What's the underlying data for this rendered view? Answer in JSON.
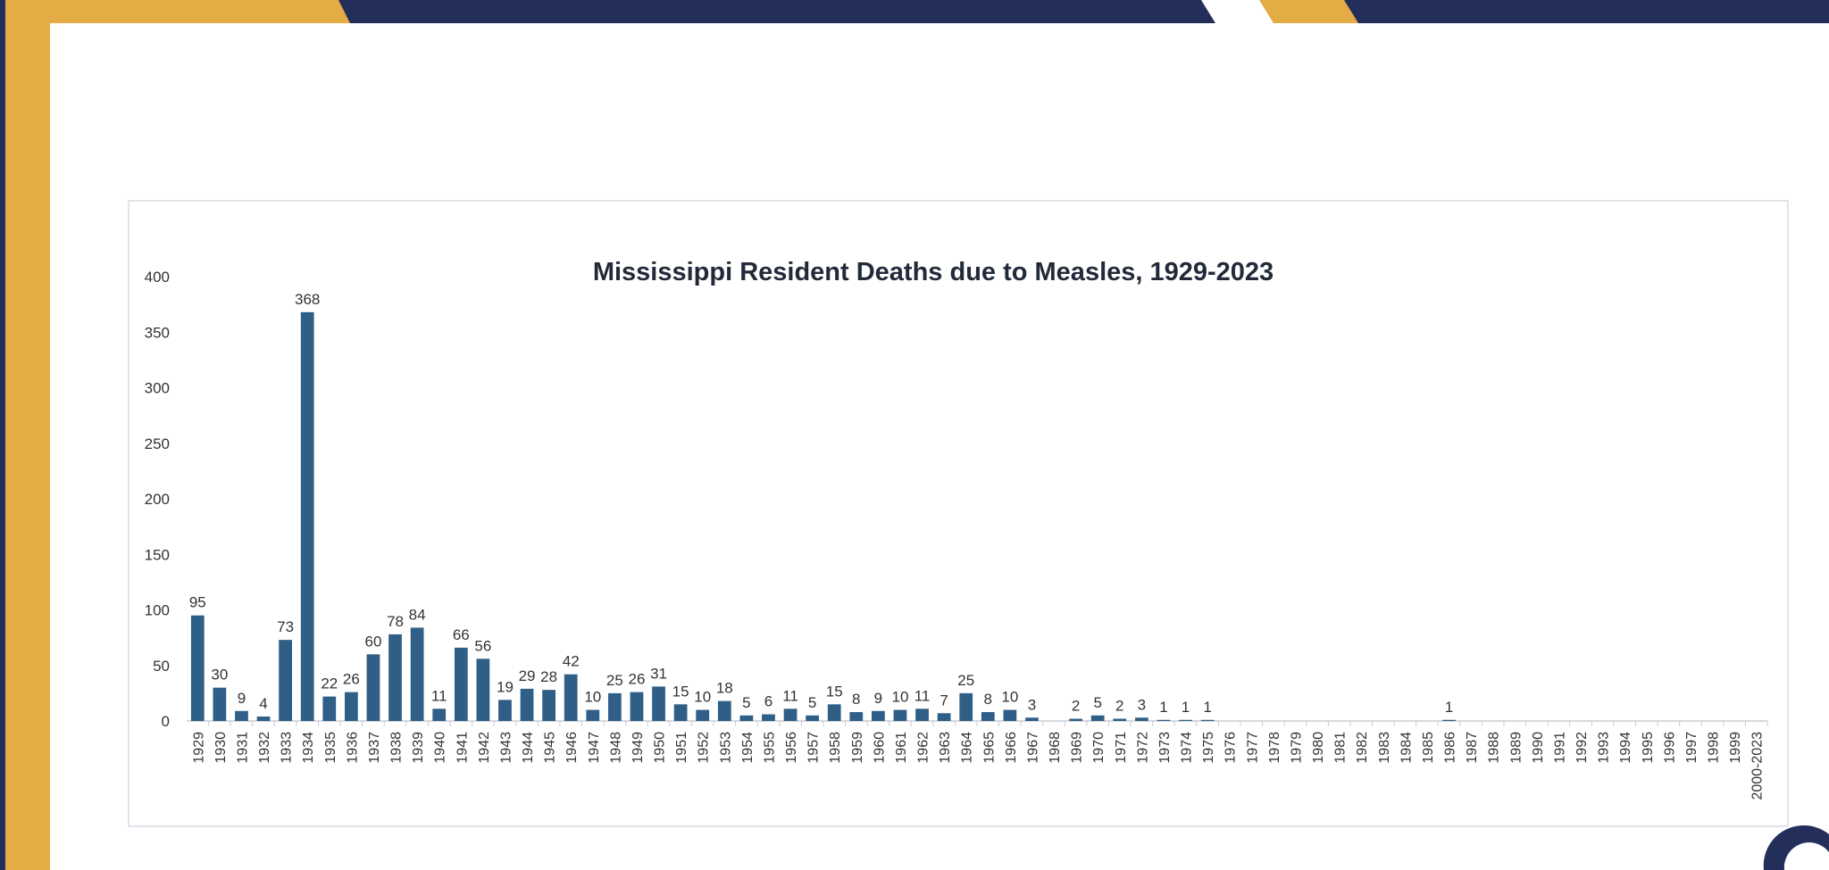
{
  "chart_data": {
    "type": "bar",
    "title": "Mississippi Resident Deaths due to Measles, 1929-2023",
    "categories": [
      "1929",
      "1930",
      "1931",
      "1932",
      "1933",
      "1934",
      "1935",
      "1936",
      "1937",
      "1938",
      "1939",
      "1940",
      "1941",
      "1942",
      "1943",
      "1944",
      "1945",
      "1946",
      "1947",
      "1948",
      "1949",
      "1950",
      "1951",
      "1952",
      "1953",
      "1954",
      "1955",
      "1956",
      "1957",
      "1958",
      "1959",
      "1960",
      "1961",
      "1962",
      "1963",
      "1964",
      "1965",
      "1966",
      "1967",
      "1968",
      "1969",
      "1970",
      "1971",
      "1972",
      "1973",
      "1974",
      "1975",
      "1976",
      "1977",
      "1978",
      "1979",
      "1980",
      "1981",
      "1982",
      "1983",
      "1984",
      "1985",
      "1986",
      "1987",
      "1988",
      "1989",
      "1990",
      "1991",
      "1992",
      "1993",
      "1994",
      "1995",
      "1996",
      "1997",
      "1998",
      "1999",
      "2000-2023"
    ],
    "values": [
      95,
      30,
      9,
      4,
      73,
      368,
      22,
      26,
      60,
      78,
      84,
      11,
      66,
      56,
      19,
      29,
      28,
      42,
      10,
      25,
      26,
      31,
      15,
      10,
      18,
      5,
      6,
      11,
      5,
      15,
      8,
      9,
      10,
      11,
      7,
      25,
      8,
      10,
      3,
      null,
      2,
      5,
      2,
      3,
      1,
      1,
      1,
      null,
      null,
      null,
      null,
      null,
      null,
      null,
      null,
      null,
      null,
      1,
      null,
      null,
      null,
      null,
      null,
      null,
      null,
      null,
      null,
      null,
      null,
      null,
      null,
      null
    ],
    "color": "#2f5f86",
    "ylim": [
      0,
      400
    ],
    "yticks": [
      0,
      50,
      100,
      150,
      200,
      250,
      300,
      350,
      400
    ],
    "grid": false
  }
}
